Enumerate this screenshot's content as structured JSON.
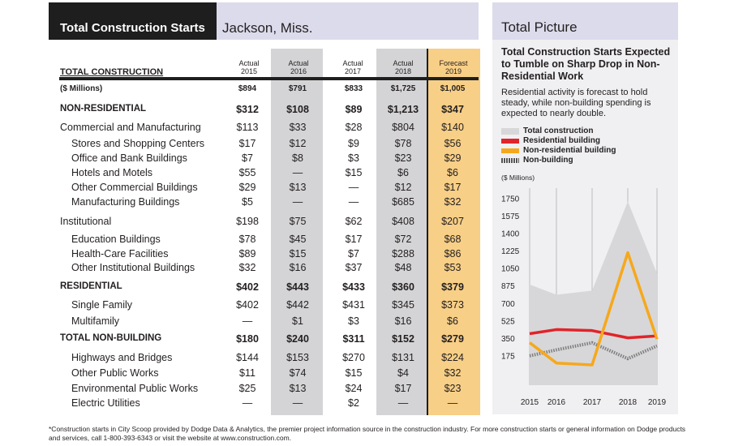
{
  "table": {
    "title": "Total Construction Starts",
    "subtitle": "Jackson, Miss.",
    "col_headers": [
      {
        "top": "Actual",
        "year": "2015"
      },
      {
        "top": "Actual",
        "year": "2016"
      },
      {
        "top": "Actual",
        "year": "2017"
      },
      {
        "top": "Actual",
        "year": "2018"
      },
      {
        "top": "Forecast",
        "year": "2019"
      }
    ],
    "total_label": "TOTAL CONSTRUCTION",
    "rows": [
      {
        "label": "($ Millions)",
        "values": [
          "$894",
          "$791",
          "$833",
          "$1,725",
          "$1,005"
        ],
        "style": "small-bold"
      },
      {
        "label": "NON-RESIDENTIAL",
        "values": [
          "$312",
          "$108",
          "$89",
          "$1,213",
          "$347"
        ],
        "style": "bold"
      },
      {
        "label": "Commercial and Manufacturing",
        "values": [
          "$113",
          "$33",
          "$28",
          "$804",
          "$140"
        ],
        "style": "section"
      },
      {
        "label": "Stores and Shopping Centers",
        "values": [
          "$17",
          "$12",
          "$9",
          "$78",
          "$56"
        ],
        "style": "sub"
      },
      {
        "label": "Office and Bank Buildings",
        "values": [
          "$7",
          "$8",
          "$3",
          "$23",
          "$29"
        ],
        "style": "sub"
      },
      {
        "label": "Hotels and Motels",
        "values": [
          "$55",
          "—",
          "$15",
          "$6",
          "$6"
        ],
        "style": "sub"
      },
      {
        "label": "Other Commercial Buildings",
        "values": [
          "$29",
          "$13",
          "—",
          "$12",
          "$17"
        ],
        "style": "sub"
      },
      {
        "label": "Manufacturing Buildings",
        "values": [
          "$5",
          "—",
          "—",
          "$685",
          "$32"
        ],
        "style": "sub"
      },
      {
        "label": "Institutional",
        "values": [
          "$198",
          "$75",
          "$62",
          "$408",
          "$207"
        ],
        "style": "section"
      },
      {
        "label": "Education Buildings",
        "values": [
          "$78",
          "$45",
          "$17",
          "$72",
          "$68"
        ],
        "style": "sub"
      },
      {
        "label": "Health-Care Facilities",
        "values": [
          "$89",
          "$15",
          "$7",
          "$288",
          "$86"
        ],
        "style": "sub"
      },
      {
        "label": "Other Institutional Buildings",
        "values": [
          "$32",
          "$16",
          "$37",
          "$48",
          "$53"
        ],
        "style": "sub"
      },
      {
        "label": "RESIDENTIAL",
        "values": [
          "$402",
          "$443",
          "$433",
          "$360",
          "$379"
        ],
        "style": "bold"
      },
      {
        "label": "Single Family",
        "values": [
          "$402",
          "$442",
          "$431",
          "$345",
          "$373"
        ],
        "style": "sub"
      },
      {
        "label": "Multifamily",
        "values": [
          "—",
          "$1",
          "$3",
          "$16",
          "$6"
        ],
        "style": "sub"
      },
      {
        "label": "TOTAL NON-BUILDING",
        "values": [
          "$180",
          "$240",
          "$311",
          "$152",
          "$279"
        ],
        "style": "bold"
      },
      {
        "label": "Highways and Bridges",
        "values": [
          "$144",
          "$153",
          "$270",
          "$131",
          "$224"
        ],
        "style": "sub"
      },
      {
        "label": "Other Public Works",
        "values": [
          "$11",
          "$74",
          "$15",
          "$4",
          "$32"
        ],
        "style": "sub"
      },
      {
        "label": "Environmental Public Works",
        "values": [
          "$25",
          "$13",
          "$24",
          "$17",
          "$23"
        ],
        "style": "sub"
      },
      {
        "label": "Electric Utilities",
        "values": [
          "—",
          "—",
          "$2",
          "—",
          "—"
        ],
        "style": "sub"
      }
    ]
  },
  "panel": {
    "title": "Total Picture",
    "chart_title": "Total Construction Starts Expected to Tumble on Sharp Drop in Non-Residential Work",
    "chart_subtitle": "Residential activity is forecast to hold steady, while non-building spending is expected to nearly double."
  },
  "chart_data": {
    "type": "line",
    "title": "Total Construction Starts Expected to Tumble on Sharp Drop in Non-Residential Work",
    "subtitle": "Residential activity is forecast to hold steady, while non-building spending is expected to nearly double.",
    "ylabel": "($ Millions)",
    "x": [
      "2015",
      "2016",
      "2017",
      "2018",
      "2019"
    ],
    "yticks": [
      175,
      350,
      525,
      700,
      875,
      1050,
      1225,
      1400,
      1575,
      1750
    ],
    "ylim": [
      0,
      1810
    ],
    "grid": "vertical lines",
    "legend": "top",
    "series": [
      {
        "name": "Total construction",
        "values": [
          894,
          791,
          833,
          1725,
          1005
        ],
        "style": "area",
        "color": "#d7d7d9"
      },
      {
        "name": "Residential building",
        "values": [
          402,
          443,
          433,
          360,
          379
        ],
        "style": "line",
        "color": "#e0242a"
      },
      {
        "name": "Non-residential building",
        "values": [
          312,
          108,
          89,
          1213,
          347
        ],
        "style": "line",
        "color": "#f6a81c"
      },
      {
        "name": "Non-building",
        "values": [
          180,
          240,
          311,
          152,
          279
        ],
        "style": "dashed",
        "color": "#8c8c8c"
      }
    ]
  },
  "footnote": "*Construction starts in City Scoop provided by Dodge Data & Analytics, the premier project information source in the construction industry. For more construction starts or general information on Dodge products and services, call 1-800-393-6343 or visit the website at www.construction.com."
}
